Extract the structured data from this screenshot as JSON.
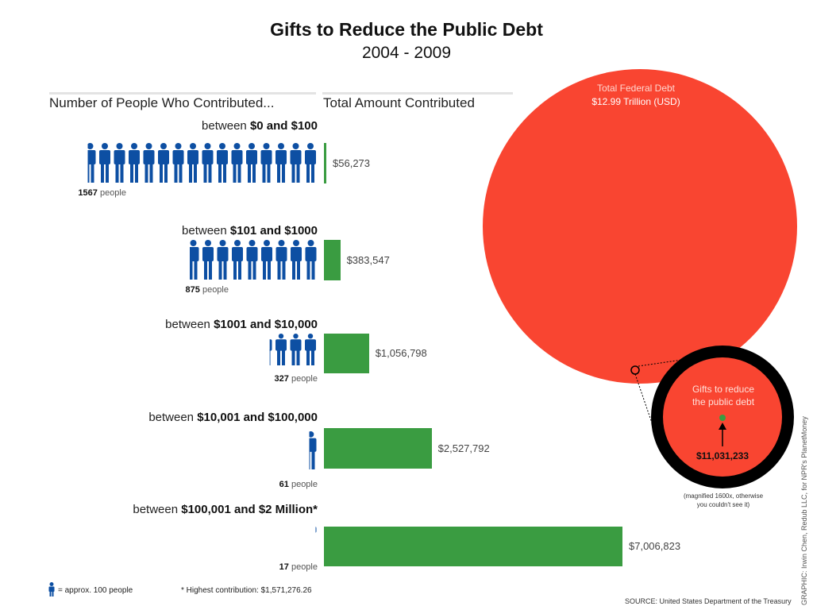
{
  "chart_data": {
    "type": "bar",
    "title": "Gifts to Reduce the Public Debt",
    "subtitle": "2004 - 2009",
    "left_header": "Number of People Who Contributed...",
    "right_header": "Total Amount Contributed",
    "categories": [
      {
        "prefix": "between ",
        "range": "$0 and $100"
      },
      {
        "prefix": "between ",
        "range": "$101 and $1000"
      },
      {
        "prefix": "between ",
        "range": "$1001 and $10,000"
      },
      {
        "prefix": "between ",
        "range": "$10,001 and $100,000"
      },
      {
        "prefix": "between ",
        "range": "$100,001 and $2 Million*"
      }
    ],
    "series": [
      {
        "name": "People",
        "values": [
          1567,
          875,
          327,
          61,
          17
        ],
        "labels": [
          "1567",
          "875",
          "327",
          "61",
          "17"
        ],
        "unit": "people"
      },
      {
        "name": "Total Amount Contributed (USD)",
        "values": [
          56273,
          383547,
          1056798,
          2527792,
          7006823
        ],
        "labels": [
          "$56,273",
          "$383,547",
          "$1,056,798",
          "$2,527,792",
          "$7,006,823"
        ]
      }
    ],
    "bar_max": 7006823,
    "icon_people_per_unit": 100,
    "debt_circle": {
      "label": "Total Federal Debt",
      "value_label": "$12.99 Trillion (USD)",
      "value": 12990000000000
    },
    "gifts_circle": {
      "label_line1": "Gifts to reduce",
      "label_line2": "the public debt",
      "value_label": "$11,031,233",
      "value": 11031233,
      "note_line1": "(magnified 1600x, otherwise",
      "note_line2": "you couldn't see it)"
    },
    "legend": "= approx. 100 people",
    "footnote": "* Highest contribution: $1,571,276.26",
    "source": "SOURCE: United States Department of the Treasury",
    "credit": "GRAPHIC: Irwin Chen, Redub LLC, for NPR's PlanetMoney"
  },
  "colors": {
    "person": "#0d4fa3",
    "bar": "#3a9c41",
    "debt": "#f94531",
    "ring": "#000000"
  }
}
